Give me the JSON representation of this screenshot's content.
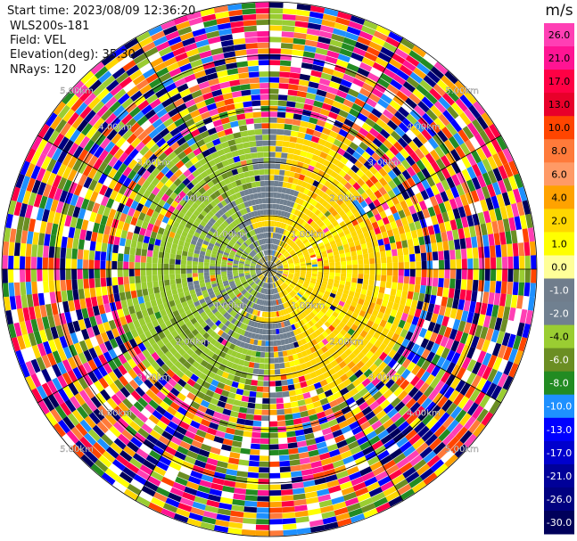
{
  "header": {
    "start_time": "Start time: 2023/08/09 12:36:20",
    "instrument": "WLS200s-181",
    "field": "Field: VEL",
    "elevation": "Elevation(deg): 35.30",
    "nrays": "NRays: 120"
  },
  "chart_data": {
    "type": "heatmap",
    "projection": "polar-ppi",
    "n_rays": 120,
    "max_range_km": 5.0,
    "range_ring_labels": [
      "1.00km",
      "2.00km",
      "3.00km",
      "4.00km",
      "5.00km"
    ],
    "range_rings_km": [
      1,
      2,
      3,
      4,
      5
    ],
    "colorbar": {
      "unit": "m/s",
      "tick_labels": [
        "26.0",
        "21.0",
        "17.0",
        "13.0",
        "10.0",
        "8.0",
        "6.0",
        "4.0",
        "2.0",
        "1.0",
        "0.0",
        "-1.0",
        "-2.0",
        "-4.0",
        "-6.0",
        "-8.0",
        "-10.0",
        "-13.0",
        "-17.0",
        "-21.0",
        "-26.0",
        "-30.0"
      ],
      "colors": [
        "#ff3fb4",
        "#ff1493",
        "#ff0044",
        "#e8002a",
        "#ff4500",
        "#ff7a3a",
        "#ff9a66",
        "#ffa200",
        "#ffd700",
        "#ffff00",
        "#ffff99",
        "#707d8c",
        "#708090",
        "#9acd32",
        "#6b8e23",
        "#228b22",
        "#1e90ff",
        "#0000ff",
        "#0000cd",
        "#000099",
        "#000080",
        "#00005a"
      ]
    }
  }
}
